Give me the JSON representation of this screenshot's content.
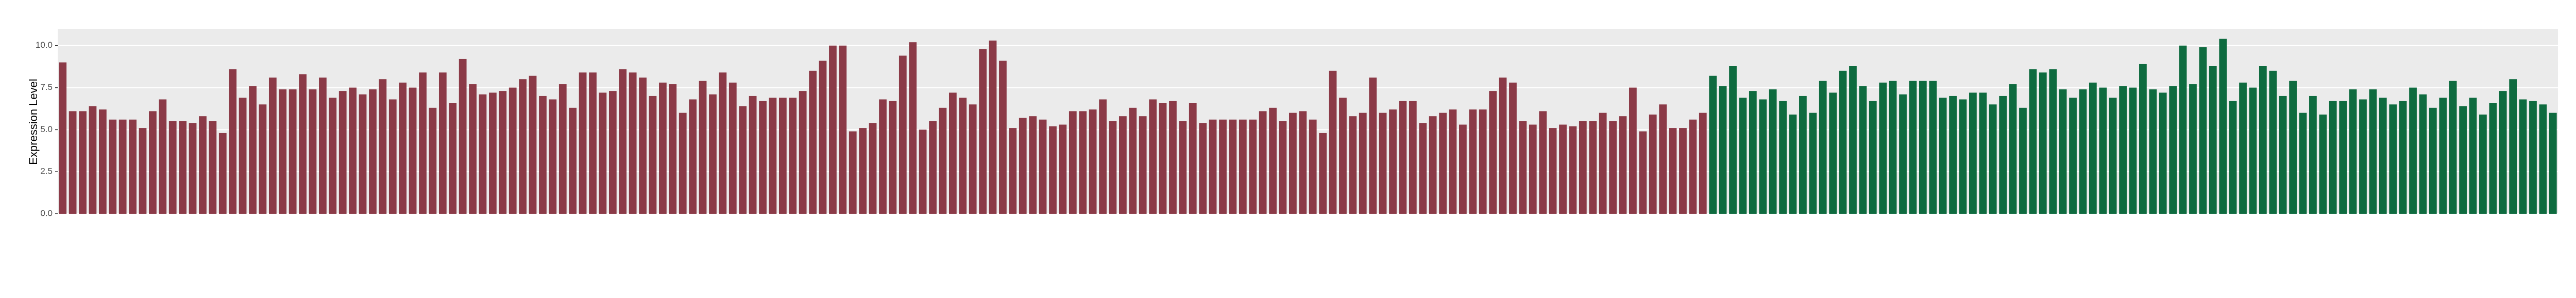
{
  "chart_data": {
    "type": "bar",
    "y_label": "Expression Level",
    "ylim": [
      0,
      11
    ],
    "yticks": [
      {
        "value": 0,
        "label": "0.0"
      },
      {
        "value": 2.5,
        "label": "2.5"
      },
      {
        "value": 5,
        "label": "5.0"
      },
      {
        "value": 7.5,
        "label": "7.5"
      },
      {
        "value": 10,
        "label": "10.0"
      }
    ],
    "grid": true,
    "series": [
      {
        "color": "#8b3a47",
        "values": [
          9.0,
          6.1,
          6.1,
          6.4,
          6.2,
          5.6,
          5.6,
          5.6,
          5.1,
          6.1,
          6.8,
          5.5,
          5.5,
          5.4,
          5.8,
          5.5,
          4.8,
          8.6,
          6.9,
          7.6,
          6.5,
          8.1,
          7.4,
          7.4,
          8.3,
          7.4,
          8.1,
          6.9,
          7.3,
          7.5,
          7.1,
          7.4,
          8.0,
          6.8,
          7.8,
          7.5,
          8.4,
          6.3,
          8.4,
          6.6,
          9.2,
          7.7,
          7.1,
          7.2,
          7.3,
          7.5,
          8.0,
          8.2,
          7.0,
          6.8,
          7.7,
          6.3,
          8.4,
          8.4,
          7.2,
          7.3,
          8.6,
          8.4,
          8.1,
          7.0,
          7.8,
          7.7,
          6.0,
          6.8,
          7.9,
          7.1,
          8.4,
          7.8,
          6.4,
          7.0,
          6.7,
          6.9,
          6.9,
          6.9,
          7.3,
          8.5,
          9.1,
          10.0,
          10.0,
          4.9,
          5.1,
          5.4,
          6.8,
          6.7,
          9.4,
          10.2,
          5.0,
          5.5,
          6.3,
          7.2,
          6.9,
          6.5,
          9.8,
          10.3,
          9.1,
          5.1,
          5.7,
          5.8,
          5.6,
          5.2,
          5.3,
          6.1,
          6.1,
          6.2,
          6.8,
          5.5,
          5.8,
          6.3,
          5.8,
          6.8,
          6.6,
          6.7,
          5.5,
          6.6,
          5.4,
          5.6,
          5.6,
          5.6,
          5.6,
          5.6,
          6.1,
          6.3,
          5.5,
          6.0,
          6.1,
          5.6,
          4.8,
          8.5,
          6.9,
          5.8,
          6.0,
          8.1,
          6.0,
          6.2,
          6.7,
          6.7,
          5.4,
          5.8,
          6.0,
          6.2,
          5.3,
          6.2,
          6.2,
          7.3,
          8.1,
          7.8,
          5.5,
          5.3,
          6.1,
          5.1,
          5.3,
          5.2,
          5.5,
          5.5,
          6.0,
          5.5,
          5.8,
          7.5,
          4.9,
          5.9,
          6.5,
          5.1,
          5.1,
          5.6,
          6.0
        ]
      },
      {
        "color": "#0e6b3f",
        "values": [
          8.2,
          7.6,
          8.8,
          6.9,
          7.3,
          6.8,
          7.4,
          6.7,
          5.9,
          7.0,
          6.0,
          7.9,
          7.2,
          8.5,
          8.8,
          7.6,
          6.7,
          7.8,
          7.9,
          7.1,
          7.9,
          7.9,
          7.9,
          6.9,
          7.0,
          6.8,
          7.2,
          7.2,
          6.5,
          7.0,
          7.7,
          6.3,
          8.6,
          8.4,
          8.6,
          7.4,
          6.9,
          7.4,
          7.8,
          7.5,
          6.9,
          7.6,
          7.5,
          8.9,
          7.4,
          7.2,
          7.6,
          10.0,
          7.7,
          9.9,
          8.8,
          10.4,
          6.7,
          7.8,
          7.5,
          8.8,
          8.5,
          7.0,
          7.9,
          6.0,
          7.0,
          5.9,
          6.7,
          6.7,
          7.4,
          6.8,
          7.4,
          6.9,
          6.5,
          6.7,
          7.5,
          7.1,
          6.3,
          6.9,
          7.9,
          6.4,
          6.9,
          5.9,
          6.6,
          7.3,
          8.0,
          6.8,
          6.7,
          6.5,
          6.0
        ]
      }
    ]
  }
}
